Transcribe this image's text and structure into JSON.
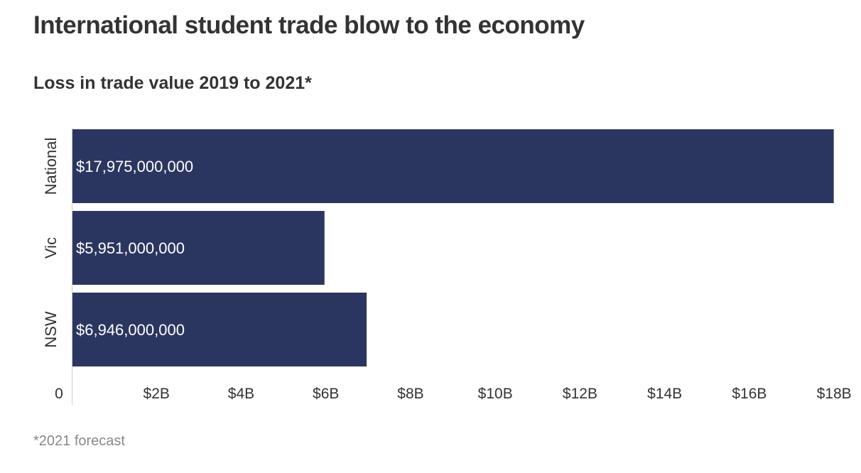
{
  "chart_data": {
    "type": "bar",
    "orientation": "horizontal",
    "title": "International student trade blow to the economy",
    "subtitle": "Loss in trade value 2019 to 2021*",
    "categories": [
      "National",
      "Vic",
      "NSW"
    ],
    "values": [
      17975000000,
      5951000000,
      6946000000
    ],
    "data_labels": [
      "$17,975,000,000",
      "$5,951,000,000",
      "$6,946,000,000"
    ],
    "x_ticks": [
      {
        "value": 0,
        "label": "0"
      },
      {
        "value": 2000000000,
        "label": "$2B"
      },
      {
        "value": 4000000000,
        "label": "$4B"
      },
      {
        "value": 6000000000,
        "label": "$6B"
      },
      {
        "value": 8000000000,
        "label": "$8B"
      },
      {
        "value": 10000000000,
        "label": "$10B"
      },
      {
        "value": 12000000000,
        "label": "$12B"
      },
      {
        "value": 14000000000,
        "label": "$14B"
      },
      {
        "value": 16000000000,
        "label": "$16B"
      },
      {
        "value": 18000000000,
        "label": "$18B"
      }
    ],
    "xlim": [
      0,
      18000000000
    ],
    "grid": false,
    "legend": "none",
    "bar_color": "#2b3660",
    "footnote": "*2021 forecast"
  }
}
